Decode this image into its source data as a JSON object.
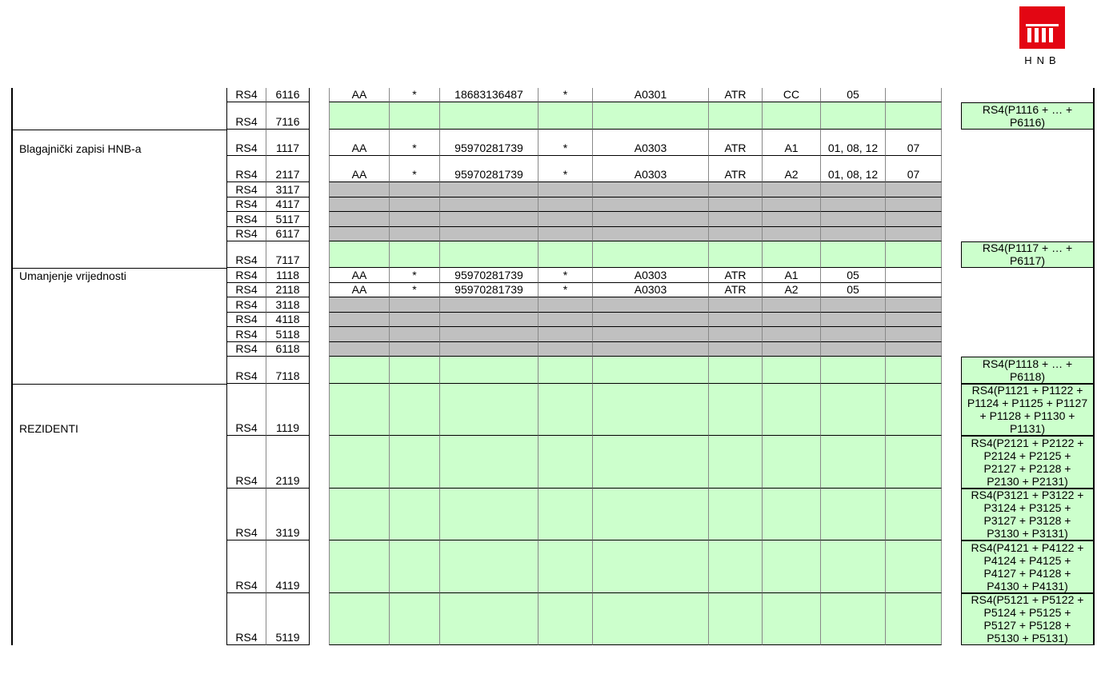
{
  "logo": {
    "text": "HNB",
    "color": "#e30613"
  },
  "colors": {
    "green": "#ccffcc",
    "gray": "#c0c0c0"
  },
  "groups": [
    {
      "label": "",
      "first_row": 0
    },
    {
      "label": "Blagajnički zapisi HNB-a",
      "first_row": 2
    },
    {
      "label": "Umanjenje vrijednosti",
      "first_row": 9
    },
    {
      "label": "REZIDENTI",
      "first_row": 16
    }
  ],
  "rows": [
    {
      "form": "RS4",
      "code": "6116",
      "fill": "white",
      "cells": [
        "AA",
        "*",
        "18683136487",
        "*",
        "A0301",
        "ATR",
        "CC",
        "05",
        ""
      ],
      "formula": ""
    },
    {
      "form": "RS4",
      "code": "7116",
      "fill": "green",
      "cells": [
        "",
        "",
        "",
        "",
        "",
        "",
        "",
        "",
        ""
      ],
      "formula": "RS4(P1116 + … + P6116)"
    },
    {
      "form": "RS4",
      "code": "1117",
      "fill": "white",
      "cells": [
        "AA",
        "*",
        "95970281739",
        "*",
        "A0303",
        "ATR",
        "A1",
        "01, 08, 12",
        "07"
      ],
      "formula": ""
    },
    {
      "form": "RS4",
      "code": "2117",
      "fill": "white",
      "cells": [
        "AA",
        "*",
        "95970281739",
        "*",
        "A0303",
        "ATR",
        "A2",
        "01, 08, 12",
        "07"
      ],
      "formula": ""
    },
    {
      "form": "RS4",
      "code": "3117",
      "fill": "gray",
      "cells": [
        "",
        "",
        "",
        "",
        "",
        "",
        "",
        "",
        ""
      ],
      "formula": ""
    },
    {
      "form": "RS4",
      "code": "4117",
      "fill": "gray",
      "cells": [
        "",
        "",
        "",
        "",
        "",
        "",
        "",
        "",
        ""
      ],
      "formula": ""
    },
    {
      "form": "RS4",
      "code": "5117",
      "fill": "gray",
      "cells": [
        "",
        "",
        "",
        "",
        "",
        "",
        "",
        "",
        ""
      ],
      "formula": ""
    },
    {
      "form": "RS4",
      "code": "6117",
      "fill": "gray",
      "cells": [
        "",
        "",
        "",
        "",
        "",
        "",
        "",
        "",
        ""
      ],
      "formula": ""
    },
    {
      "form": "RS4",
      "code": "7117",
      "fill": "green",
      "cells": [
        "",
        "",
        "",
        "",
        "",
        "",
        "",
        "",
        ""
      ],
      "formula": "RS4(P1117 + … + P6117)"
    },
    {
      "form": "RS4",
      "code": "1118",
      "fill": "white",
      "cells": [
        "AA",
        "*",
        "95970281739",
        "*",
        "A0303",
        "ATR",
        "A1",
        "05",
        ""
      ],
      "formula": ""
    },
    {
      "form": "RS4",
      "code": "2118",
      "fill": "white",
      "cells": [
        "AA",
        "*",
        "95970281739",
        "*",
        "A0303",
        "ATR",
        "A2",
        "05",
        ""
      ],
      "formula": ""
    },
    {
      "form": "RS4",
      "code": "3118",
      "fill": "gray",
      "cells": [
        "",
        "",
        "",
        "",
        "",
        "",
        "",
        "",
        ""
      ],
      "formula": ""
    },
    {
      "form": "RS4",
      "code": "4118",
      "fill": "gray",
      "cells": [
        "",
        "",
        "",
        "",
        "",
        "",
        "",
        "",
        ""
      ],
      "formula": ""
    },
    {
      "form": "RS4",
      "code": "5118",
      "fill": "gray",
      "cells": [
        "",
        "",
        "",
        "",
        "",
        "",
        "",
        "",
        ""
      ],
      "formula": ""
    },
    {
      "form": "RS4",
      "code": "6118",
      "fill": "gray",
      "cells": [
        "",
        "",
        "",
        "",
        "",
        "",
        "",
        "",
        ""
      ],
      "formula": ""
    },
    {
      "form": "RS4",
      "code": "7118",
      "fill": "green",
      "cells": [
        "",
        "",
        "",
        "",
        "",
        "",
        "",
        "",
        ""
      ],
      "formula": "RS4(P1118 + … + P6118)"
    },
    {
      "form": "RS4",
      "code": "1119",
      "fill": "green",
      "cells": [
        "",
        "",
        "",
        "",
        "",
        "",
        "",
        "",
        ""
      ],
      "formula": "RS4(P1121 + P1122 + P1124 + P1125 + P1127 + P1128 + P1130 + P1131)"
    },
    {
      "form": "RS4",
      "code": "2119",
      "fill": "green",
      "cells": [
        "",
        "",
        "",
        "",
        "",
        "",
        "",
        "",
        ""
      ],
      "formula": "RS4(P2121 + P2122 + P2124 + P2125 + P2127 + P2128 + P2130 + P2131)"
    },
    {
      "form": "RS4",
      "code": "3119",
      "fill": "green",
      "cells": [
        "",
        "",
        "",
        "",
        "",
        "",
        "",
        "",
        ""
      ],
      "formula": "RS4(P3121 + P3122 + P3124 + P3125 + P3127 + P3128 + P3130 + P3131)"
    },
    {
      "form": "RS4",
      "code": "4119",
      "fill": "green",
      "cells": [
        "",
        "",
        "",
        "",
        "",
        "",
        "",
        "",
        ""
      ],
      "formula": "RS4(P4121 + P4122 + P4124 + P4125 + P4127 + P4128 + P4130 + P4131)"
    },
    {
      "form": "RS4",
      "code": "5119",
      "fill": "green",
      "cells": [
        "",
        "",
        "",
        "",
        "",
        "",
        "",
        "",
        ""
      ],
      "formula": "RS4(P5121 + P5122 + P5124 + P5125 + P5127 + P5128 + P5130 + P5131)"
    }
  ]
}
